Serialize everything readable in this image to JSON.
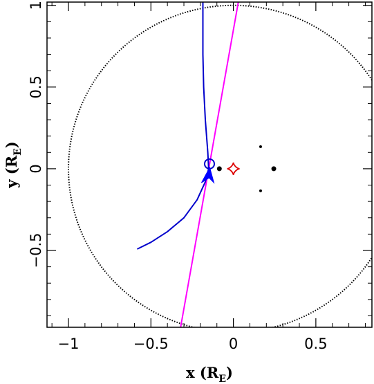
{
  "chart_data": {
    "type": "scatter",
    "title": "",
    "xlabel": {
      "main": "x (R",
      "sub": "E",
      "close": ")"
    },
    "ylabel": {
      "main": "y (R",
      "sub": "E",
      "close": ")"
    },
    "xlim": [
      -1.13,
      0.84
    ],
    "ylim": [
      -0.97,
      1.02
    ],
    "xticks": [
      {
        "value": -1.0,
        "label": "−1"
      },
      {
        "value": -0.5,
        "label": "−0.5"
      },
      {
        "value": 0.0,
        "label": "0"
      },
      {
        "value": 0.5,
        "label": "0.5"
      }
    ],
    "yticks": [
      {
        "value": -0.5,
        "label": "−0.5"
      },
      {
        "value": 0.0,
        "label": "0"
      },
      {
        "value": 0.5,
        "label": "0.5"
      },
      {
        "value": 1.0,
        "label": "1"
      }
    ],
    "einstein_ring": {
      "cx": 0.0,
      "cy": 0.0,
      "r": 1.0,
      "color": "#000000",
      "style": "dotted"
    },
    "source_trajectory": {
      "color": "#ff00ff",
      "x": [
        -0.32,
        0.03
      ],
      "y": [
        -0.97,
        1.02
      ]
    },
    "image_trajectory": {
      "color": "#0000cc",
      "x": [
        -0.58,
        -0.5,
        -0.4,
        -0.3,
        -0.22,
        -0.17,
        -0.15,
        -0.155,
        -0.17,
        -0.18,
        -0.185,
        -0.185,
        -0.185
      ],
      "y": [
        -0.49,
        -0.45,
        -0.385,
        -0.3,
        -0.19,
        -0.08,
        0.0,
        0.1,
        0.3,
        0.5,
        0.7,
        0.9,
        1.02
      ]
    },
    "image_marker": {
      "x": -0.145,
      "y": 0.03,
      "color": "#0000cc",
      "shape": "open-circle"
    },
    "arrow_marker": {
      "x": -0.16,
      "y": -0.06,
      "color": "#0000ff",
      "direction": "up"
    },
    "lens_masses": [
      {
        "x": -0.085,
        "y": 0.0,
        "size": "large"
      },
      {
        "x": 0.245,
        "y": 0.0,
        "size": "large"
      },
      {
        "x": 0.165,
        "y": 0.135,
        "size": "small"
      },
      {
        "x": 0.165,
        "y": -0.135,
        "size": "small"
      }
    ],
    "caustic": {
      "x": 0.0,
      "y": 0.0,
      "color": "#dd0000",
      "shape": "astroid"
    }
  }
}
